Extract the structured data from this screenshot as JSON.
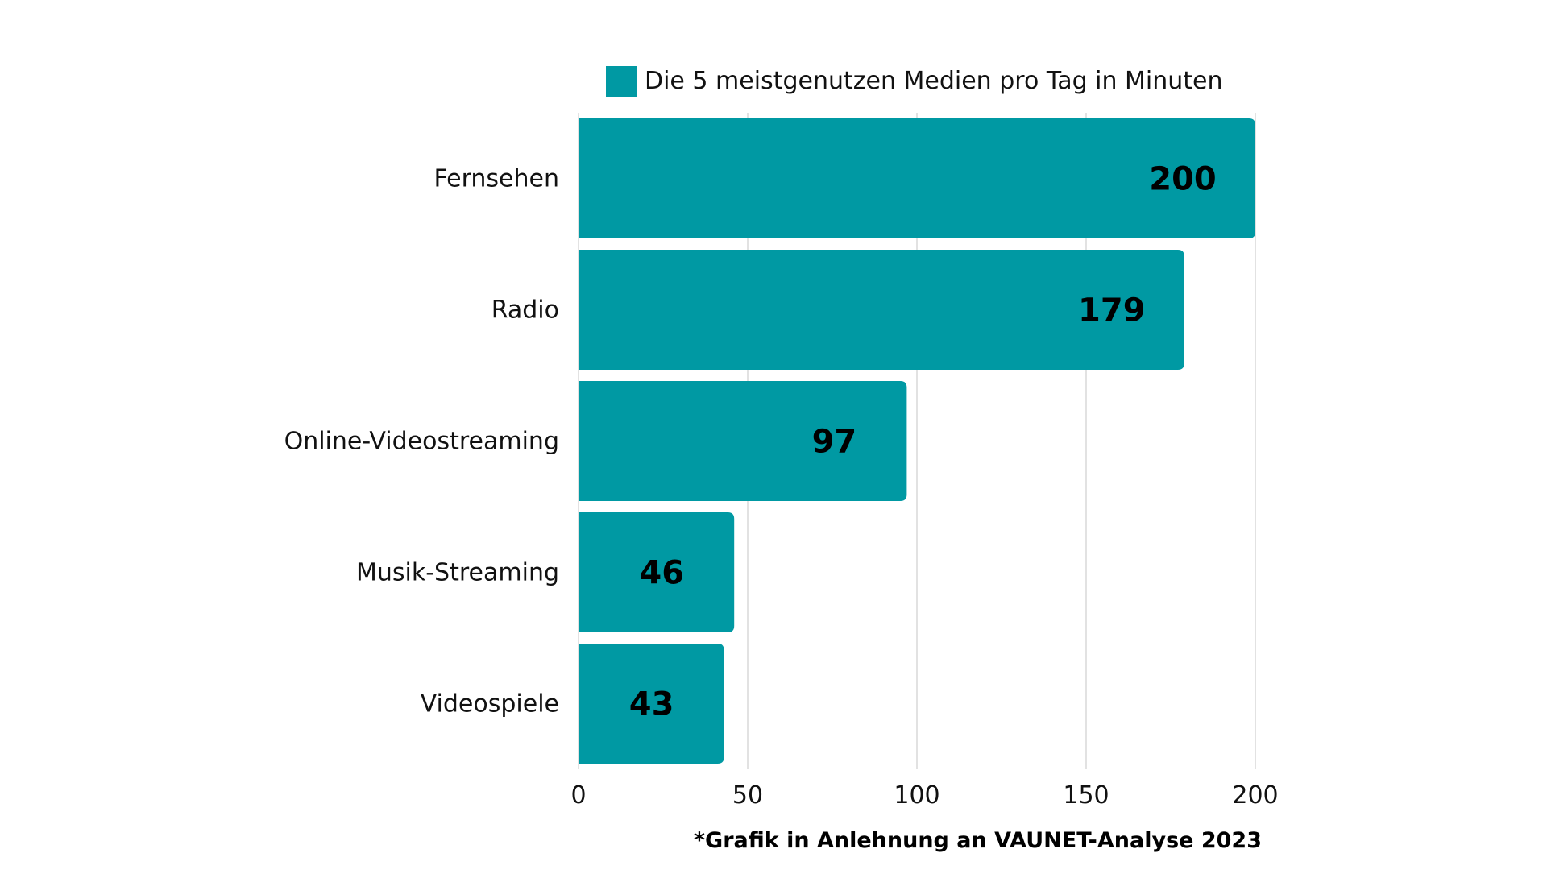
{
  "chart_data": {
    "type": "bar",
    "orientation": "horizontal",
    "categories": [
      "Fernsehen",
      "Radio",
      "Online-Videostreaming",
      "Musik-Streaming",
      "Videospiele"
    ],
    "series": [
      {
        "name": "Die 5 meistgenutzen Medien pro Tag in Minuten",
        "values": [
          200,
          179,
          97,
          46,
          43
        ],
        "color": "#0099a3"
      }
    ],
    "xlim": [
      0,
      200
    ],
    "xticks": [
      0,
      50,
      100,
      150,
      200
    ],
    "grid": "vertical",
    "legend_position": "top",
    "data_labels": true
  },
  "footnote": "*Grafik in Anlehnung an VAUNET-Analyse 2023",
  "colors": {
    "bar": "#0099a3",
    "grid": "#d9d9d9",
    "text": "#111111"
  }
}
